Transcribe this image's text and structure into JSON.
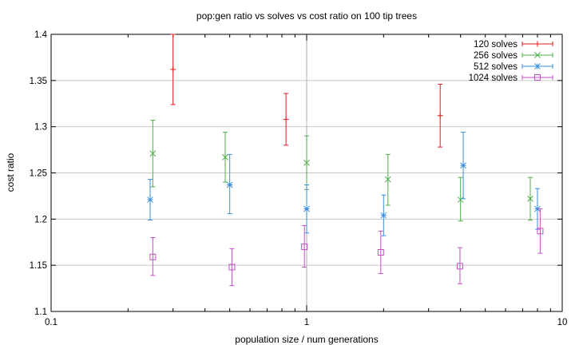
{
  "chart_data": {
    "type": "scatter",
    "title": "pop:gen ratio vs solves vs cost ratio on 100 tip trees",
    "xlabel": "population size / num generations",
    "ylabel": "cost ratio",
    "x_scale": "log",
    "xlim": [
      0.1,
      10
    ],
    "ylim": [
      1.1,
      1.4
    ],
    "x_ticks": [
      0.1,
      1,
      10
    ],
    "x_tick_labels": [
      "0.1",
      "1",
      "10"
    ],
    "y_ticks": [
      1.1,
      1.15,
      1.2,
      1.25,
      1.3,
      1.35,
      1.4
    ],
    "y_tick_labels": [
      "1.1",
      "1.15",
      "1.2",
      "1.25",
      "1.3",
      "1.35",
      "1.4"
    ],
    "grid": "horizontal",
    "legend_position": "top-right",
    "series": [
      {
        "name": "120 solves",
        "color": "#e41a1c",
        "marker": "plus",
        "points": [
          {
            "x": 0.3,
            "y": 1.362,
            "low": 1.324,
            "high": 1.4
          },
          {
            "x": 0.83,
            "y": 1.308,
            "low": 1.28,
            "high": 1.336
          },
          {
            "x": 3.33,
            "y": 1.312,
            "low": 1.278,
            "high": 1.346
          }
        ]
      },
      {
        "name": "256 solves",
        "color": "#4daf4a",
        "marker": "cross",
        "points": [
          {
            "x": 0.25,
            "y": 1.271,
            "low": 1.235,
            "high": 1.307
          },
          {
            "x": 0.48,
            "y": 1.267,
            "low": 1.24,
            "high": 1.294
          },
          {
            "x": 1.0,
            "y": 1.261,
            "low": 1.232,
            "high": 1.29
          },
          {
            "x": 2.08,
            "y": 1.243,
            "low": 1.215,
            "high": 1.27
          },
          {
            "x": 4.0,
            "y": 1.221,
            "low": 1.198,
            "high": 1.245
          },
          {
            "x": 7.5,
            "y": 1.222,
            "low": 1.199,
            "high": 1.245
          }
        ]
      },
      {
        "name": "512 solves",
        "color": "#3a8fd9",
        "marker": "star",
        "points": [
          {
            "x": 0.244,
            "y": 1.221,
            "low": 1.199,
            "high": 1.243
          },
          {
            "x": 0.5,
            "y": 1.237,
            "low": 1.206,
            "high": 1.27
          },
          {
            "x": 1.0,
            "y": 1.211,
            "low": 1.185,
            "high": 1.237
          },
          {
            "x": 2.0,
            "y": 1.204,
            "low": 1.182,
            "high": 1.226
          },
          {
            "x": 4.1,
            "y": 1.258,
            "low": 1.222,
            "high": 1.294
          },
          {
            "x": 8.0,
            "y": 1.211,
            "low": 1.189,
            "high": 1.233
          }
        ]
      },
      {
        "name": "1024 solves",
        "color": "#c34fc6",
        "marker": "square",
        "points": [
          {
            "x": 0.25,
            "y": 1.159,
            "low": 1.139,
            "high": 1.18
          },
          {
            "x": 0.51,
            "y": 1.148,
            "low": 1.128,
            "high": 1.168
          },
          {
            "x": 0.98,
            "y": 1.17,
            "low": 1.148,
            "high": 1.193
          },
          {
            "x": 1.95,
            "y": 1.164,
            "low": 1.141,
            "high": 1.187
          },
          {
            "x": 3.98,
            "y": 1.149,
            "low": 1.13,
            "high": 1.169
          },
          {
            "x": 8.2,
            "y": 1.187,
            "low": 1.163,
            "high": 1.211
          }
        ]
      }
    ]
  }
}
